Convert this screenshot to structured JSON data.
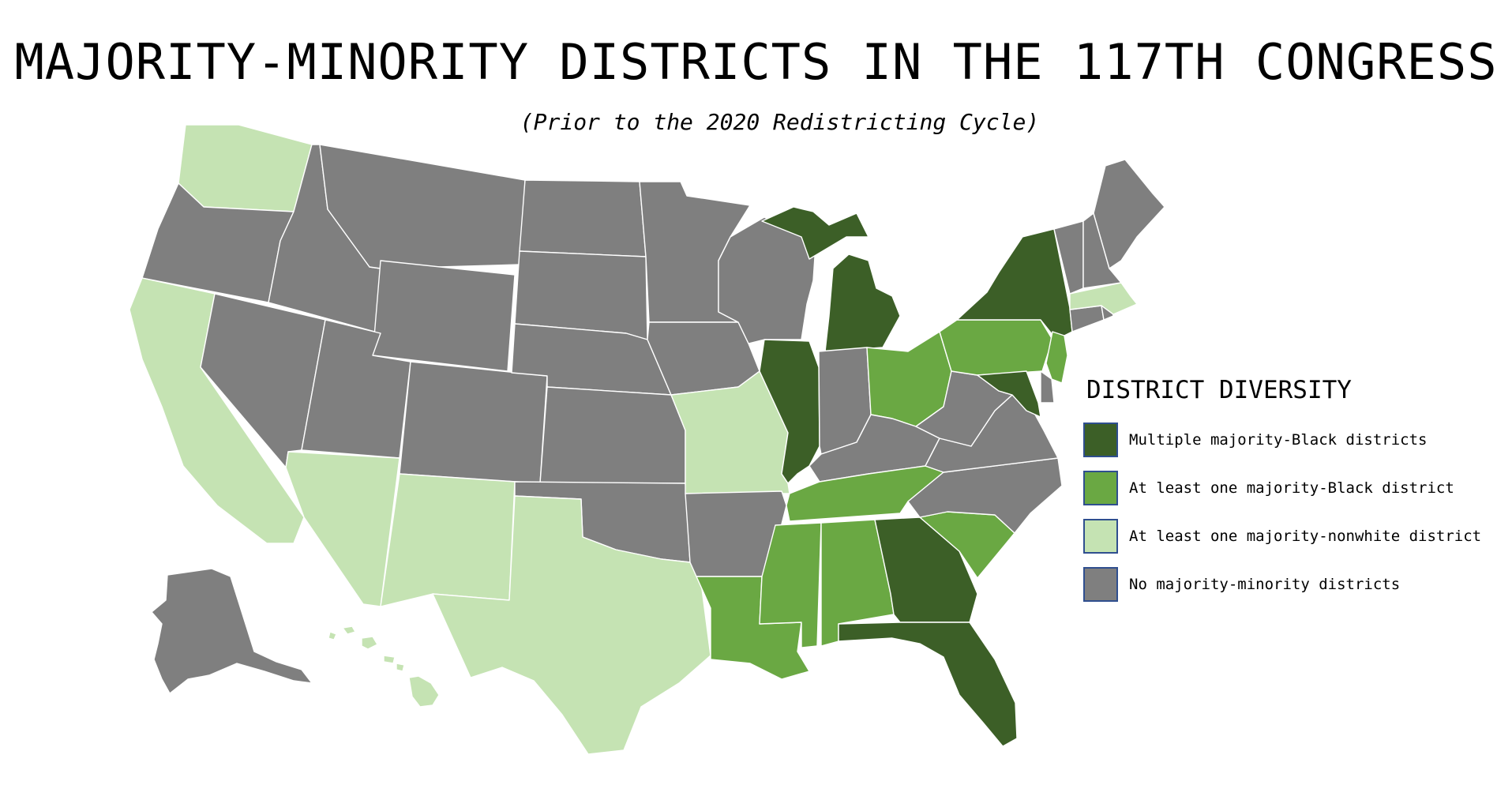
{
  "title": "MAJORITY-MINORITY DISTRICTS IN THE 117TH CONGRESS",
  "subtitle": "(Prior to the 2020 Redistricting Cycle)",
  "legend": {
    "title": "DISTRICT DIVERSITY",
    "items": [
      {
        "key": "multi_black",
        "label": "Multiple majority-Black districts",
        "color": "#3c5f27"
      },
      {
        "key": "one_black",
        "label": "At least one majority-Black district",
        "color": "#6aa843"
      },
      {
        "key": "nonwhite",
        "label": "At least one majority-nonwhite district",
        "color": "#c5e3b3"
      },
      {
        "key": "none",
        "label": "No majority-minority districts",
        "color": "#7f7f7f"
      }
    ]
  },
  "states": [
    {
      "id": "WA",
      "category": "nonwhite"
    },
    {
      "id": "OR",
      "category": "none"
    },
    {
      "id": "CA",
      "category": "nonwhite"
    },
    {
      "id": "ID",
      "category": "none"
    },
    {
      "id": "NV",
      "category": "none"
    },
    {
      "id": "MT",
      "category": "none"
    },
    {
      "id": "WY",
      "category": "none"
    },
    {
      "id": "UT",
      "category": "none"
    },
    {
      "id": "AZ",
      "category": "nonwhite"
    },
    {
      "id": "CO",
      "category": "none"
    },
    {
      "id": "NM",
      "category": "nonwhite"
    },
    {
      "id": "ND",
      "category": "none"
    },
    {
      "id": "SD",
      "category": "none"
    },
    {
      "id": "NE",
      "category": "none"
    },
    {
      "id": "KS",
      "category": "none"
    },
    {
      "id": "OK",
      "category": "none"
    },
    {
      "id": "TX",
      "category": "nonwhite"
    },
    {
      "id": "MN",
      "category": "none"
    },
    {
      "id": "IA",
      "category": "none"
    },
    {
      "id": "MO",
      "category": "nonwhite"
    },
    {
      "id": "AR",
      "category": "none"
    },
    {
      "id": "LA",
      "category": "one_black"
    },
    {
      "id": "WI",
      "category": "none"
    },
    {
      "id": "IL",
      "category": "multi_black"
    },
    {
      "id": "MI",
      "category": "multi_black"
    },
    {
      "id": "IN",
      "category": "none"
    },
    {
      "id": "OH",
      "category": "one_black"
    },
    {
      "id": "KY",
      "category": "none"
    },
    {
      "id": "TN",
      "category": "one_black"
    },
    {
      "id": "MS",
      "category": "one_black"
    },
    {
      "id": "AL",
      "category": "one_black"
    },
    {
      "id": "GA",
      "category": "multi_black"
    },
    {
      "id": "FL",
      "category": "multi_black"
    },
    {
      "id": "SC",
      "category": "one_black"
    },
    {
      "id": "NC",
      "category": "none"
    },
    {
      "id": "VA",
      "category": "none"
    },
    {
      "id": "WV",
      "category": "none"
    },
    {
      "id": "PA",
      "category": "one_black"
    },
    {
      "id": "NY",
      "category": "multi_black"
    },
    {
      "id": "NJ",
      "category": "one_black"
    },
    {
      "id": "MD",
      "category": "multi_black"
    },
    {
      "id": "DE",
      "category": "none"
    },
    {
      "id": "CT",
      "category": "none"
    },
    {
      "id": "RI",
      "category": "none"
    },
    {
      "id": "MA",
      "category": "nonwhite"
    },
    {
      "id": "VT",
      "category": "none"
    },
    {
      "id": "NH",
      "category": "none"
    },
    {
      "id": "ME",
      "category": "none"
    },
    {
      "id": "AK",
      "category": "none"
    },
    {
      "id": "HI",
      "category": "nonwhite"
    }
  ]
}
